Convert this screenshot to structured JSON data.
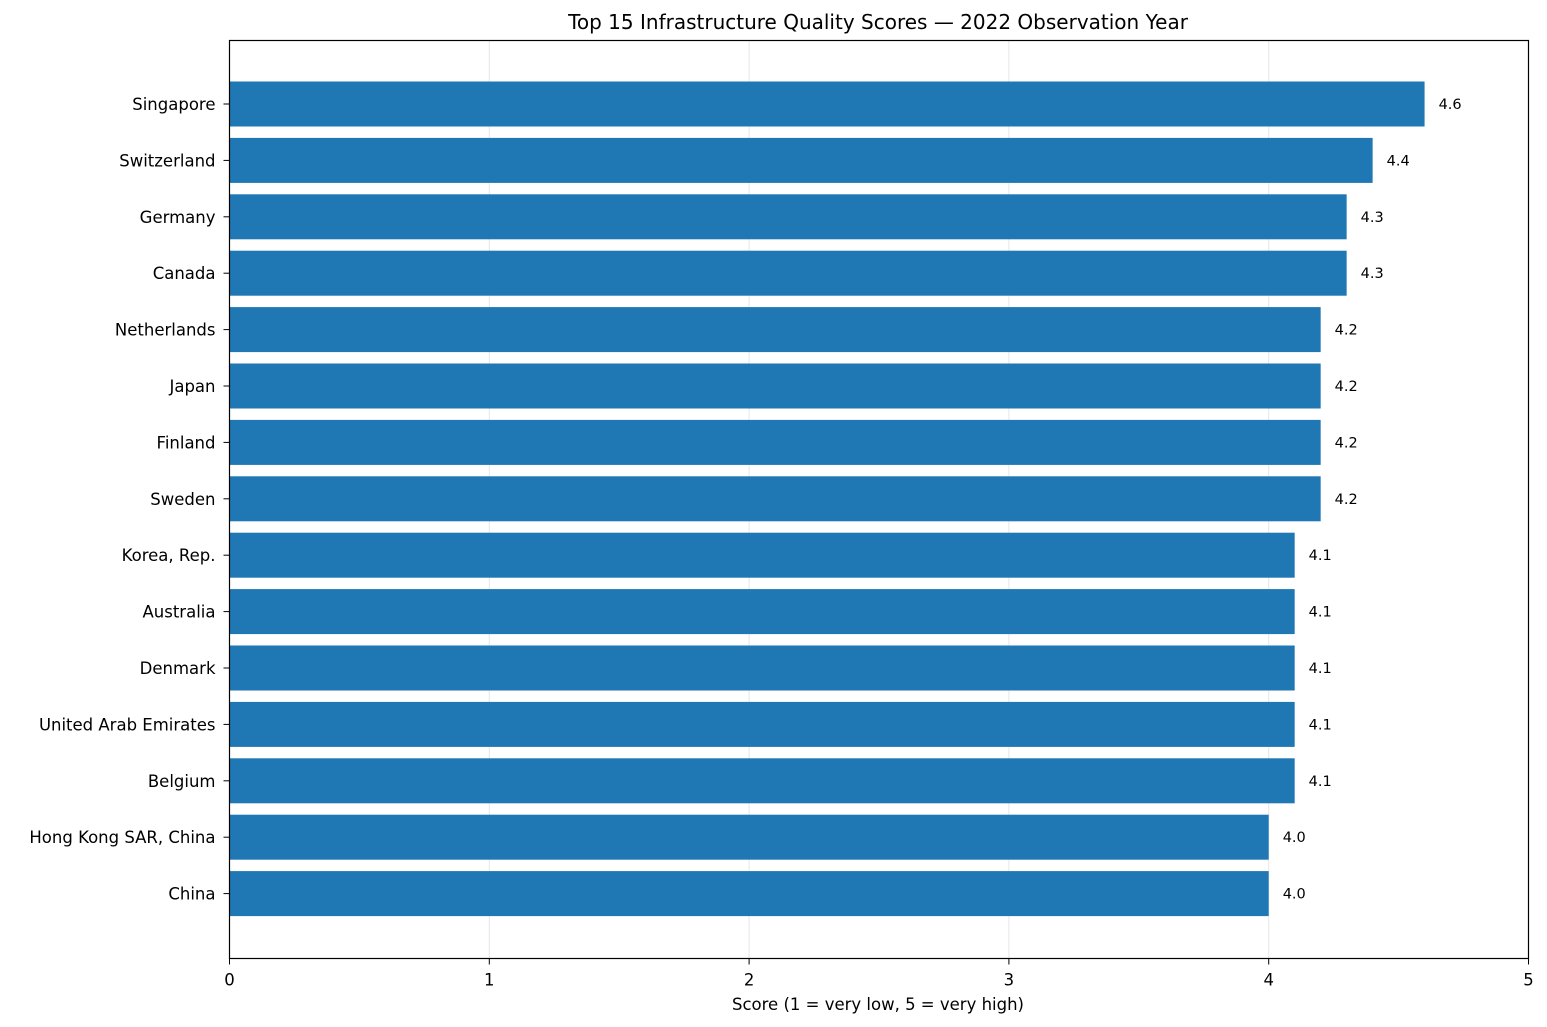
{
  "chart_data": {
    "type": "bar",
    "orientation": "horizontal",
    "title": "Top 15 Infrastructure Quality Scores — 2022 Observation Year",
    "xlabel": "Score (1 = very low, 5 = very high)",
    "ylabel": "",
    "xlim": [
      0,
      5
    ],
    "xticks": [
      "0",
      "1",
      "2",
      "3",
      "4",
      "5"
    ],
    "grid": "vertical, light",
    "bar_color": "#1f77b4",
    "categories": [
      "Singapore",
      "Switzerland",
      "Germany",
      "Canada",
      "Netherlands",
      "Japan",
      "Finland",
      "Sweden",
      "Korea, Rep.",
      "Australia",
      "Denmark",
      "United Arab Emirates",
      "Belgium",
      "Hong Kong SAR, China",
      "China"
    ],
    "values": [
      4.6,
      4.4,
      4.3,
      4.3,
      4.2,
      4.2,
      4.2,
      4.2,
      4.1,
      4.1,
      4.1,
      4.1,
      4.1,
      4.0,
      4.0
    ],
    "value_labels": [
      "4.6",
      "4.4",
      "4.3",
      "4.3",
      "4.2",
      "4.2",
      "4.2",
      "4.2",
      "4.1",
      "4.1",
      "4.1",
      "4.1",
      "4.1",
      "4.0",
      "4.0"
    ]
  }
}
